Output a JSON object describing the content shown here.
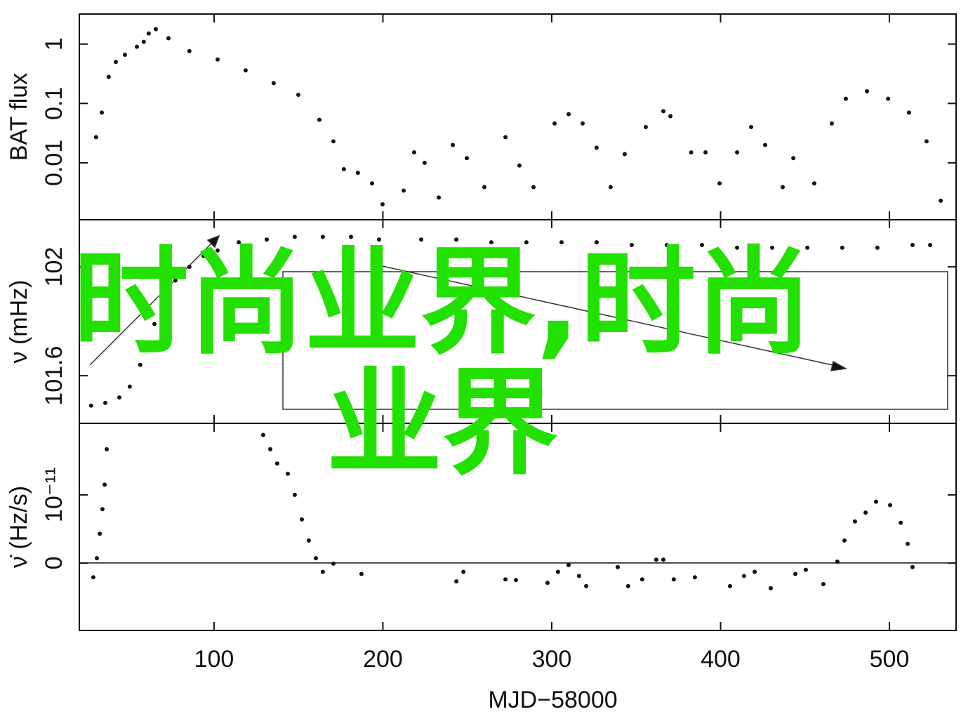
{
  "chart_data": [
    {
      "type": "scatter",
      "y_label": "BAT flux",
      "log_y": true,
      "color": "#111111",
      "xlim": [
        20.2,
        539.5
      ],
      "xticks": [
        100,
        200,
        300,
        400,
        500
      ],
      "ylim": [
        0.0011,
        3.2
      ],
      "yticks": [
        0.01,
        0.1,
        1
      ],
      "x": [
        30.1,
        33.5,
        37.6,
        41.8,
        47.2,
        54.3,
        58.4,
        61.3,
        65.5,
        73.0,
        85.4,
        102.1,
        118.7,
        135.3,
        149.9,
        162.4,
        170.7,
        176.9,
        185.2,
        193.6,
        199.8,
        212.3,
        218.5,
        224.7,
        233.1,
        241.4,
        249.7,
        260.1,
        272.6,
        280.9,
        289.2,
        301.7,
        310.0,
        318.3,
        326.6,
        334.9,
        343.2,
        355.7,
        366.1,
        370.3,
        382.6,
        391.1,
        399.4,
        409.8,
        418.1,
        426.4,
        436.8,
        443.1,
        455.5,
        465.9,
        474.2,
        486.7,
        499.2,
        511.6,
        522.0,
        530.4
      ],
      "values": [
        0.027,
        0.07,
        0.28,
        0.5,
        0.66,
        0.9,
        1.09,
        1.51,
        1.78,
        1.25,
        0.76,
        0.55,
        0.36,
        0.22,
        0.14,
        0.053,
        0.023,
        0.0078,
        0.0068,
        0.0045,
        0.002,
        0.0034,
        0.015,
        0.01,
        0.0026,
        0.02,
        0.012,
        0.0039,
        0.027,
        0.009,
        0.0039,
        0.046,
        0.066,
        0.046,
        0.018,
        0.0039,
        0.014,
        0.04,
        0.074,
        0.061,
        0.015,
        0.015,
        0.0045,
        0.015,
        0.04,
        0.02,
        0.0039,
        0.012,
        0.0045,
        0.046,
        0.12,
        0.16,
        0.12,
        0.07,
        0.023,
        0.0023
      ]
    },
    {
      "type": "scatter",
      "y_label": "ν (mHz)",
      "color": "#111111",
      "xlim": [
        20.2,
        539.5
      ],
      "xticks": [
        100,
        200,
        300,
        400,
        500
      ],
      "ylim": [
        101.425,
        102.173
      ],
      "yticks": [
        101.6,
        102
      ],
      "x": [
        27.2,
        35.6,
        43.9,
        50.1,
        56.3,
        60.5,
        64.7,
        70.9,
        77.1,
        85.4,
        93.8,
        102.1,
        114.6,
        131.2,
        147.8,
        164.4,
        181.1,
        197.7,
        222.7,
        243.5,
        264.2,
        285.0,
        305.8,
        326.6,
        347.4,
        368.2,
        389.0,
        409.8,
        430.6,
        451.4,
        472.1,
        492.9,
        513.7,
        524.1
      ],
      "values": [
        101.49,
        101.5,
        101.52,
        101.56,
        101.64,
        101.7,
        101.79,
        101.88,
        101.95,
        102.0,
        102.04,
        102.06,
        102.09,
        102.1,
        102.11,
        102.11,
        102.11,
        102.1,
        102.1,
        102.1,
        102.09,
        102.09,
        102.09,
        102.09,
        102.08,
        102.08,
        102.08,
        102.07,
        102.07,
        102.07,
        102.07,
        102.07,
        102.08,
        102.08
      ]
    },
    {
      "type": "scatter",
      "y_label": "ν̇ (Hz/s)",
      "x_label": "MJD−58000",
      "color": "#111111",
      "zero_line": true,
      "xlim": [
        20.2,
        539.5
      ],
      "xticks": [
        100,
        200,
        300,
        400,
        500
      ],
      "ylim": [
        -9.9e-12,
        2.05e-11
      ],
      "yticks": [
        0,
        {
          "value": 1e-11,
          "label": "10⁻¹¹"
        }
      ],
      "x": [
        28.5,
        30.6,
        32.3,
        33.9,
        35.2,
        36.4,
        129.1,
        133.3,
        137.4,
        143.7,
        147.8,
        152.0,
        156.1,
        160.3,
        164.4,
        170.7,
        187.3,
        243.5,
        247.7,
        272.6,
        278.8,
        297.5,
        303.7,
        310.0,
        316.2,
        320.4,
        339.1,
        345.3,
        353.6,
        361.9,
        366.1,
        372.3,
        384.8,
        405.6,
        413.9,
        420.2,
        429.7,
        444.3,
        450.5,
        460.9,
        469.2,
        473.4,
        479.6,
        485.9,
        492.1,
        500.4,
        506.7,
        510.8,
        513.7
      ],
      "values": [
        -2.1e-12,
        7e-13,
        4.3e-12,
        7.9e-12,
        1.15e-11,
        1.67e-11,
        1.88e-11,
        1.67e-11,
        1.46e-11,
        1.31e-11,
        1e-11,
        6.4e-12,
        3.3e-12,
        7e-13,
        -1.3e-12,
        -1e-13,
        -1.6e-12,
        -2.7e-12,
        -1.3e-12,
        -2.4e-12,
        -2.5e-12,
        -2.9e-12,
        -1.3e-12,
        -3e-13,
        -1.9e-12,
        -3.4e-12,
        -6e-13,
        -3.4e-12,
        -2.4e-12,
        5e-13,
        5e-13,
        -2.4e-12,
        -2.1e-12,
        -3.4e-12,
        -1.9e-12,
        -1.3e-12,
        -3.7e-12,
        -1.6e-12,
        -1e-12,
        -3.1e-12,
        2e-13,
        3.3e-12,
        6.1e-12,
        7.4e-12,
        9e-12,
        8.5e-12,
        5.9e-12,
        2.8e-12,
        -6e-13
      ]
    }
  ],
  "watermark": "时尚业界,时尚业界"
}
